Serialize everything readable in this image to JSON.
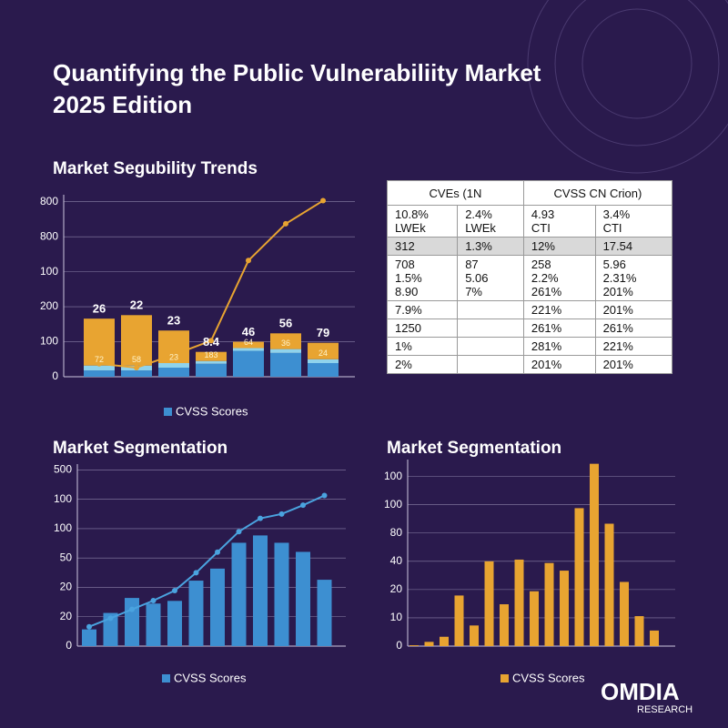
{
  "header": {
    "title": [
      "Quantifying the Public Vulnerabiliity Market",
      "2025 Edition"
    ]
  },
  "chart_data": [
    {
      "type": "bar",
      "title": "Market Segubility Trends",
      "stacked": true,
      "categories": [
        null,
        null,
        null,
        null,
        null,
        null,
        null
      ],
      "series": [
        {
          "name": "CVSS Scores",
          "color": "#3d8fd1",
          "values": [
            18,
            18,
            26,
            37,
            74,
            68,
            39
          ]
        },
        {
          "color": "#8fd3ec",
          "values": [
            14,
            14,
            13,
            8,
            8,
            11,
            11
          ]
        },
        {
          "color": "#e8a431",
          "values": [
            134,
            144,
            93,
            26,
            18,
            45,
            47
          ]
        },
        {
          "type": "line",
          "color": "#e8a431",
          "values": [
            37,
            26,
            63,
            103,
            332,
            437,
            503
          ]
        }
      ],
      "top_labels": [
        "26",
        "22",
        "23",
        "8.4",
        "46",
        "56",
        "79"
      ],
      "inner_labels": [
        "72",
        "58",
        "23",
        "183",
        "64",
        "36",
        "24"
      ],
      "ylim": [
        0,
        520
      ],
      "yticks": [
        0,
        100,
        200,
        {
          "value": 300,
          "label": "100"
        },
        {
          "value": 400,
          "label": "800"
        },
        {
          "value": 500,
          "label": "800"
        }
      ],
      "grid": true
    },
    {
      "type": "bar",
      "title": "Market Segmentation",
      "categories": [
        null,
        null,
        null,
        null,
        null,
        null,
        null,
        null,
        null,
        null,
        null,
        null
      ],
      "series": [
        {
          "name": "CVSS Scores",
          "color": "#3d8fd1",
          "values": [
            0.57,
            1.13,
            1.64,
            1.45,
            1.54,
            2.23,
            2.64,
            3.52,
            3.77,
            3.52,
            3.21,
            2.26
          ]
        },
        {
          "type": "line",
          "color": "#4aa3df",
          "values": [
            0.66,
            0.95,
            1.25,
            1.55,
            1.89,
            2.5,
            3.2,
            3.9,
            4.35,
            4.5,
            4.8,
            5.13
          ]
        }
      ],
      "ylim": [
        0,
        6.2
      ],
      "yticks": [
        0,
        {
          "value": 1,
          "label": "20"
        },
        {
          "value": 2,
          "label": "20"
        },
        {
          "value": 3,
          "label": "50"
        },
        {
          "value": 4,
          "label": "100"
        },
        {
          "value": 5,
          "label": "100"
        },
        {
          "value": 6,
          "label": "500"
        }
      ],
      "grid": true
    },
    {
      "type": "bar",
      "title": "Market Segmentation",
      "categories": [
        null,
        null,
        null,
        null,
        null,
        null,
        null,
        null,
        null,
        null,
        null,
        null,
        null,
        null,
        null,
        null,
        null
      ],
      "series": [
        {
          "name": "CVSS Scores",
          "color": "#e8a431",
          "values": [
            0.03,
            0.15,
            0.33,
            1.79,
            0.73,
            3.0,
            1.48,
            3.06,
            1.94,
            2.94,
            2.67,
            4.88,
            6.45,
            4.33,
            2.27,
            1.06,
            0.55
          ]
        }
      ],
      "ylim": [
        0,
        6.6
      ],
      "yticks": [
        0,
        {
          "value": 1,
          "label": "10"
        },
        {
          "value": 2,
          "label": "20"
        },
        {
          "value": 3,
          "label": "40"
        },
        {
          "value": 4,
          "label": "80"
        },
        {
          "value": 5,
          "label": "100"
        },
        {
          "value": 6,
          "label": "100"
        }
      ],
      "grid": true
    }
  ],
  "table": {
    "header": [
      "CVEs (1N",
      "CVSS CN Crion)"
    ],
    "subheader": [
      [
        "10.8%",
        "LWEk"
      ],
      [
        "2.4%",
        "LWEk"
      ],
      [
        "4.93",
        "CTI"
      ],
      [
        "3.4%",
        "CTI"
      ]
    ],
    "rows": [
      [
        "312",
        "1.3%",
        "12%",
        "17.54"
      ],
      [
        [
          "708",
          "1.5%",
          "8.90"
        ],
        [
          "87",
          "5.06",
          "7%"
        ],
        [
          "258",
          "2.2%",
          "261%"
        ],
        [
          "5.96",
          "2.31%",
          "201%"
        ]
      ],
      [
        "7.9%",
        null,
        "221%",
        "201%"
      ],
      [
        "1250",
        null,
        "261%",
        "261%"
      ],
      [
        "1%",
        null,
        "281%",
        "221%"
      ],
      [
        "2%",
        null,
        "201%",
        "201%"
      ]
    ]
  },
  "logo": {
    "name": "OMDIA",
    "sub": "RESEARCH"
  }
}
